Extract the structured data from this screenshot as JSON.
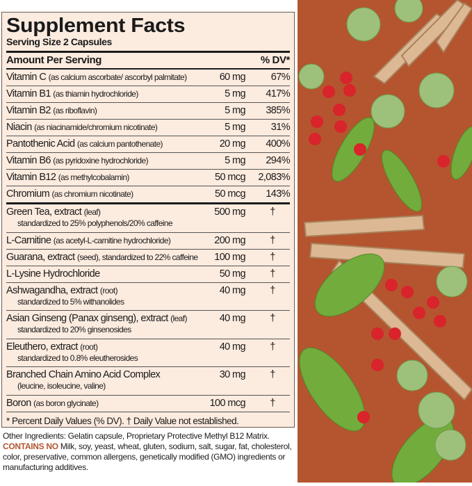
{
  "panel": {
    "title": "Supplement Facts",
    "serving_size": "Serving Size 2 Capsules",
    "header_amount": "Amount Per Serving",
    "header_dv": "% DV*",
    "vitamins": [
      {
        "name": "Vitamin C",
        "detail": "(as calcium ascorbate/ ascorbyl palmitate)",
        "amount": "60 mg",
        "dv": "67%"
      },
      {
        "name": "Vitamin B1",
        "detail": "(as thiamin hydrochloride)",
        "amount": "5 mg",
        "dv": "417%"
      },
      {
        "name": "Vitamin B2",
        "detail": "(as riboflavin)",
        "amount": "5 mg",
        "dv": "385%"
      },
      {
        "name": "Niacin",
        "detail": "(as niacinamide/chromium nicotinate)",
        "amount": "5 mg",
        "dv": "31%"
      },
      {
        "name": "Pantothenic Acid",
        "detail": "(as calcium pantothenate)",
        "amount": "20 mg",
        "dv": "400%"
      },
      {
        "name": "Vitamin B6",
        "detail": "(as pyridoxine hydrochloride)",
        "amount": "5 mg",
        "dv": "294%"
      },
      {
        "name": "Vitamin B12",
        "detail": "(as methylcobalamin)",
        "amount": "50 mcg",
        "dv": "2,083%"
      },
      {
        "name": "Chromium",
        "detail": "(as chromium nicotinate)",
        "amount": "50 mcg",
        "dv": "143%"
      }
    ],
    "others": [
      {
        "name": "Green Tea, extract",
        "detail": "(leaf)",
        "sub": "standardized to 25% polyphenols/20% caffeine",
        "amount": "500 mg",
        "dv": "†"
      },
      {
        "name": "L-Carnitine",
        "detail": "(as acetyl-L-carnitine hydrochloride)",
        "amount": "200 mg",
        "dv": "†"
      },
      {
        "name": "Guarana, extract",
        "detail": "(seed), standardized to 22% caffeine",
        "amount": "100 mg",
        "dv": "†"
      },
      {
        "name": "L-Lysine Hydrochloride",
        "detail": "",
        "amount": "50 mg",
        "dv": "†"
      },
      {
        "name": "Ashwagandha, extract",
        "detail": "(root)",
        "sub": "standardized to 5% withanolides",
        "amount": "40 mg",
        "dv": "†"
      },
      {
        "name": "Asian Ginseng (Panax ginseng), extract",
        "detail": "(leaf)",
        "sub": "standardized to 20% ginsenosides",
        "amount": "40 mg",
        "dv": "†"
      },
      {
        "name": "Eleuthero, extract",
        "detail": "(root)",
        "sub": "standardized to 0.8% eleutherosides",
        "amount": "40 mg",
        "dv": "†"
      },
      {
        "name": "Branched Chain Amino Acid Complex",
        "detail": "",
        "sub": "(leucine, isoleucine, valine)",
        "amount": "30 mg",
        "dv": "†"
      },
      {
        "name": "Boron",
        "detail": "(as boron glycinate)",
        "amount": "100 mcg",
        "dv": "†"
      }
    ],
    "footnote": "* Percent Daily Values (% DV). † Daily Value not established."
  },
  "other_ingredients": "Other Ingredients: Gelatin capsule, Proprietary Protective Methyl B12 Matrix.",
  "contains_no_label": "CONTAINS NO",
  "contains_no_text": "Milk, soy, yeast, wheat, gluten, sodium, salt, sugar, fat, cholesterol, color, preservative, common allergens, genetically modified (GMO) ingredients or manufacturing additives.",
  "colors": {
    "accent": "#b4552f",
    "panel_bg": "#fcebdf",
    "leaf": "#6aa83a",
    "berry": "#d8242a",
    "root": "#d9b48f"
  }
}
